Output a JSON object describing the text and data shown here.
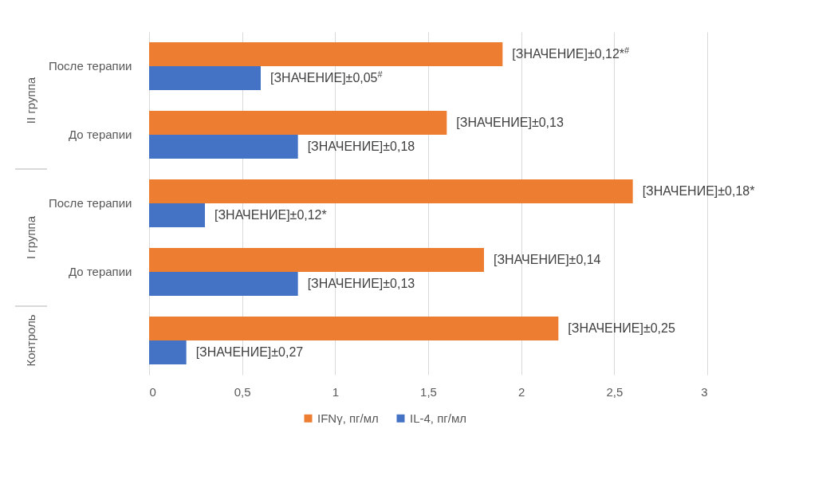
{
  "chart_data": {
    "type": "bar",
    "orientation": "horizontal",
    "categories": [
      "После терапии",
      "До терапии",
      "После терапии",
      "До терапии",
      null
    ],
    "series": [
      {
        "name": "IFNγ, пг/мл",
        "color": "#ed7d31",
        "values": [
          1.9,
          1.6,
          2.6,
          1.8,
          2.2
        ]
      },
      {
        "name": "IL-4, пг/мл",
        "color": "#4472c4",
        "values": [
          0.6,
          0.8,
          0.3,
          0.8,
          0.2
        ]
      }
    ],
    "annotations": [
      "II группа",
      "I группа",
      "Контроль",
      "[ЗНАЧЕНИЕ]±0,12*$^{#}$",
      "[ЗНАЧЕНИЕ]±0,13",
      "[ЗНАЧЕНИЕ]±0,18*",
      "[ЗНАЧЕНИЕ]±0,14",
      "[ЗНАЧЕНИЕ]±0,25",
      "[ЗНАЧЕНИЕ]±0,05$^{#}$",
      "[ЗНАЧЕНИЕ]±0,18",
      "[ЗНАЧЕНИЕ]±0,12*",
      "[ЗНАЧЕНИЕ]±0,13",
      "[ЗНАЧЕНИЕ]±0,27"
    ],
    "xlim": [
      0,
      3
    ],
    "xticks": [
      0,
      {
        "value": 0.5,
        "label": "0,5"
      },
      1,
      {
        "value": 1.5,
        "label": "1,5"
      },
      2,
      {
        "value": 2.5,
        "label": "2,5"
      },
      3
    ],
    "grid": "x",
    "legend": "bottom"
  }
}
